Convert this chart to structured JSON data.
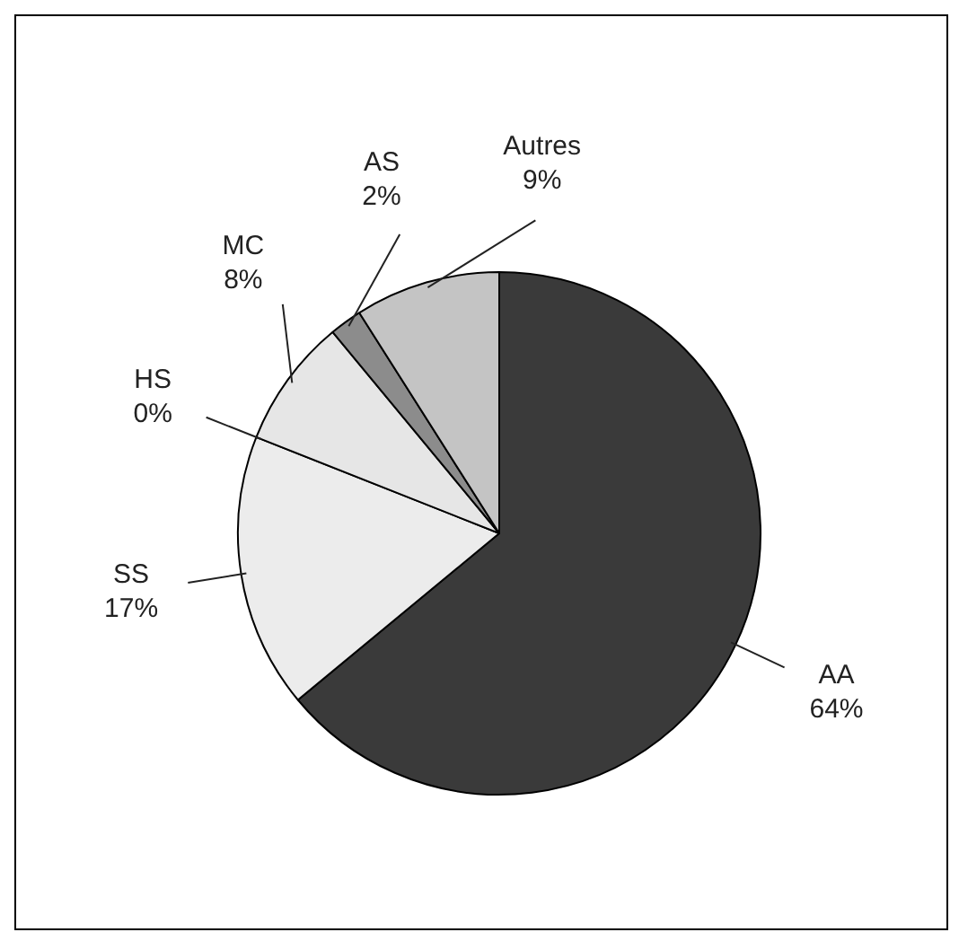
{
  "chart_data": {
    "type": "pie",
    "categories": [
      "AA",
      "SS",
      "HS",
      "MC",
      "AS",
      "Autres"
    ],
    "values": [
      64,
      17,
      0,
      8,
      2,
      9
    ],
    "value_labels": [
      "64%",
      "17%",
      "0%",
      "8%",
      "2%",
      "9%"
    ],
    "colors": [
      "#3a3a3a",
      "#ececec",
      "#ffffff",
      "#e6e6e6",
      "#8c8c8c",
      "#c4c4c4"
    ],
    "legend": false
  }
}
